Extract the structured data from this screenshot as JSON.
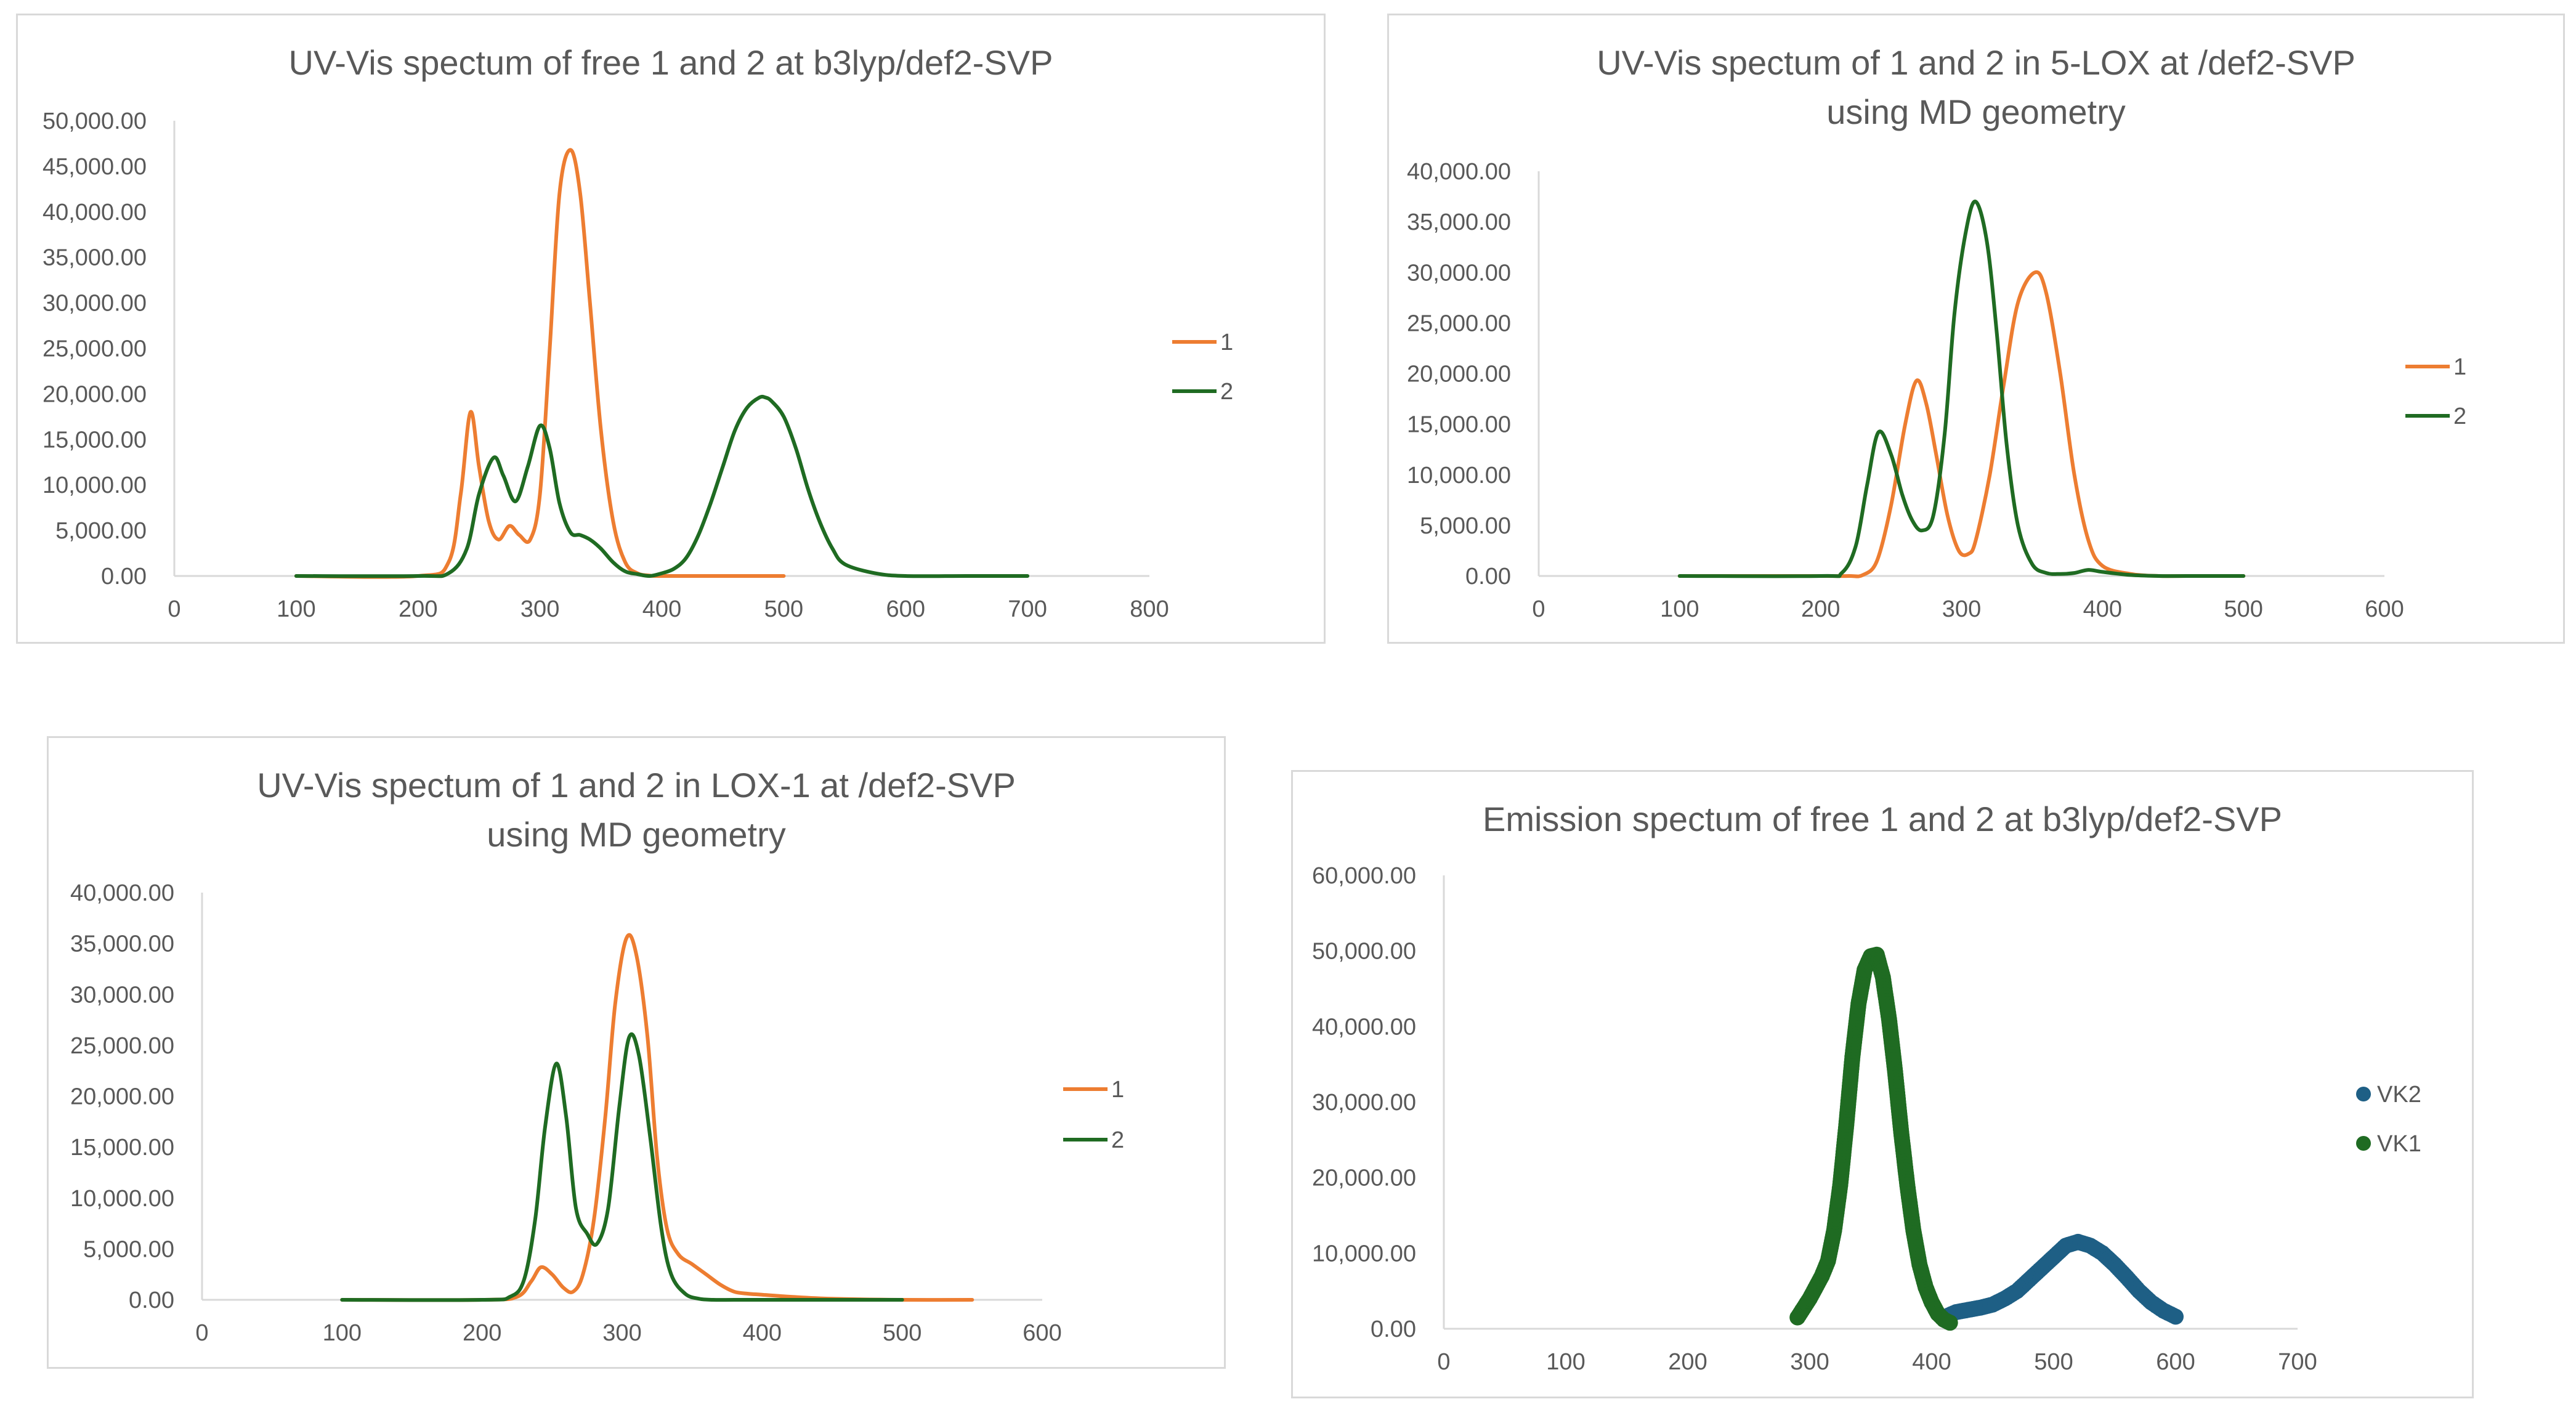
{
  "colors": {
    "series1": "#ED7D31",
    "series2": "#1F6B22",
    "vk2": "#1E5F85",
    "vk1": "#1F6B22",
    "axis": "#d9d9d9",
    "text": "#595959"
  },
  "chart_data": [
    {
      "type": "line",
      "title": "UV-Vis spectum of free 1 and 2 at b3lyp/def2-SVP",
      "title_lines": [
        "UV-Vis spectum of free 1 and 2 at b3lyp/def2-SVP"
      ],
      "xlabel": "",
      "ylabel": "",
      "xlim": [
        0,
        800
      ],
      "ylim": [
        0,
        50000
      ],
      "x_ticks": [
        "0",
        "100",
        "200",
        "300",
        "400",
        "500",
        "600",
        "700",
        "800"
      ],
      "y_ticks": [
        "0.00",
        "5,000.00",
        "10,000.00",
        "15,000.00",
        "20,000.00",
        "25,000.00",
        "30,000.00",
        "35,000.00",
        "40,000.00",
        "45,000.00",
        "50,000.00"
      ],
      "legend": "right",
      "series": [
        {
          "name": "1",
          "color": "#ED7D31",
          "x": [
            100,
            200,
            225,
            235,
            243,
            250,
            258,
            266,
            275,
            283,
            292,
            300,
            308,
            316,
            325,
            333,
            341,
            350,
            360,
            370,
            380,
            390,
            400,
            500
          ],
          "y": [
            0,
            0,
            1500,
            9000,
            18000,
            12000,
            6000,
            4000,
            5500,
            4500,
            4000,
            9000,
            25000,
            42000,
            46800,
            42000,
            30000,
            16000,
            6000,
            1500,
            300,
            50,
            0,
            0
          ]
        },
        {
          "name": "2",
          "color": "#1F6B22",
          "x": [
            100,
            200,
            225,
            240,
            250,
            262,
            270,
            280,
            290,
            300,
            308,
            316,
            325,
            333,
            341,
            350,
            360,
            370,
            380,
            390,
            400,
            410,
            420,
            430,
            440,
            450,
            460,
            470,
            480,
            485,
            490,
            500,
            510,
            520,
            530,
            540,
            550,
            575,
            600,
            650,
            700
          ],
          "y": [
            0,
            0,
            300,
            3000,
            9000,
            13000,
            11000,
            8200,
            12000,
            16500,
            14000,
            8000,
            4800,
            4500,
            4000,
            3000,
            1500,
            500,
            200,
            0,
            300,
            800,
            2000,
            4500,
            8000,
            12000,
            16000,
            18500,
            19600,
            19600,
            19200,
            17500,
            14000,
            9500,
            5800,
            3000,
            1300,
            300,
            0,
            0,
            0
          ]
        }
      ]
    },
    {
      "type": "line",
      "title": "UV-Vis spectum of 1 and 2 in 5-LOX at /def2-SVP using MD geometry",
      "title_lines": [
        "UV-Vis spectum of 1 and 2 in 5-LOX at /def2-SVP",
        "using MD geometry"
      ],
      "xlabel": "",
      "ylabel": "",
      "xlim": [
        0,
        600
      ],
      "ylim": [
        0,
        40000
      ],
      "x_ticks": [
        "0",
        "100",
        "200",
        "300",
        "400",
        "500",
        "600"
      ],
      "y_ticks": [
        "0.00",
        "5,000.00",
        "10,000.00",
        "15,000.00",
        "20,000.00",
        "25,000.00",
        "30,000.00",
        "35,000.00",
        "40,000.00"
      ],
      "legend": "right",
      "series": [
        {
          "name": "1",
          "color": "#ED7D31",
          "x": [
            100,
            200,
            220,
            230,
            240,
            250,
            260,
            268,
            275,
            282,
            290,
            298,
            305,
            310,
            320,
            330,
            340,
            352,
            360,
            370,
            380,
            390,
            400,
            420,
            440,
            460,
            500
          ],
          "y": [
            0,
            0,
            0,
            100,
            1500,
            7000,
            15000,
            19300,
            17000,
            12000,
            6000,
            2500,
            2200,
            3500,
            10000,
            19000,
            27000,
            30000,
            28000,
            20000,
            10000,
            3500,
            1000,
            200,
            0,
            0,
            0
          ]
        },
        {
          "name": "2",
          "color": "#1F6B22",
          "x": [
            100,
            200,
            215,
            225,
            233,
            241,
            250,
            258,
            265,
            272,
            280,
            288,
            295,
            303,
            310,
            318,
            325,
            332,
            340,
            350,
            360,
            370,
            380,
            390,
            400,
            420,
            440,
            460,
            500
          ],
          "y": [
            0,
            0,
            300,
            3000,
            9000,
            14200,
            12000,
            8000,
            5500,
            4500,
            6000,
            14000,
            26000,
            34000,
            37000,
            33000,
            24000,
            13000,
            5000,
            1200,
            300,
            200,
            300,
            600,
            400,
            100,
            0,
            0,
            0
          ]
        }
      ]
    },
    {
      "type": "line",
      "title": "UV-Vis spectum of 1 and 2 in LOX-1 at /def2-SVP using MD geometry",
      "title_lines": [
        "UV-Vis spectum of 1 and 2 in LOX-1 at /def2-SVP",
        "using MD geometry"
      ],
      "xlabel": "",
      "ylabel": "",
      "xlim": [
        0,
        600
      ],
      "ylim": [
        0,
        40000
      ],
      "x_ticks": [
        "0",
        "100",
        "200",
        "300",
        "400",
        "500",
        "600"
      ],
      "y_ticks": [
        "0.00",
        "5,000.00",
        "10,000.00",
        "15,000.00",
        "20,000.00",
        "25,000.00",
        "30,000.00",
        "35,000.00",
        "40,000.00"
      ],
      "legend": "right",
      "series": [
        {
          "name": "1",
          "color": "#ED7D31",
          "x": [
            100,
            200,
            225,
            235,
            242,
            250,
            258,
            265,
            272,
            280,
            288,
            295,
            303,
            310,
            318,
            325,
            332,
            340,
            350,
            360,
            370,
            380,
            390,
            400,
            420,
            450,
            500,
            550
          ],
          "y": [
            0,
            0,
            300,
            1800,
            3200,
            2500,
            1200,
            800,
            2500,
            8000,
            18000,
            29000,
            35500,
            34000,
            26000,
            14000,
            7000,
            4500,
            3500,
            2500,
            1500,
            800,
            600,
            500,
            300,
            100,
            0,
            0
          ]
        },
        {
          "name": "2",
          "color": "#1F6B22",
          "x": [
            100,
            200,
            220,
            230,
            238,
            245,
            253,
            260,
            267,
            275,
            282,
            290,
            298,
            305,
            312,
            320,
            328,
            335,
            345,
            355,
            365,
            380,
            400,
            420,
            450,
            500
          ],
          "y": [
            0,
            0,
            300,
            2000,
            8000,
            17000,
            23200,
            18000,
            9000,
            6500,
            5500,
            9000,
            19000,
            25800,
            24000,
            16000,
            7000,
            2500,
            600,
            100,
            0,
            0,
            0,
            0,
            0,
            0
          ]
        }
      ]
    },
    {
      "type": "scatter",
      "title": "Emission spectum of free 1 and 2 at b3lyp/def2-SVP",
      "title_lines": [
        "Emission spectum of free 1 and 2 at b3lyp/def2-SVP"
      ],
      "xlabel": "",
      "ylabel": "",
      "xlim": [
        0,
        700
      ],
      "ylim": [
        0,
        60000
      ],
      "x_ticks": [
        "0",
        "100",
        "200",
        "300",
        "400",
        "500",
        "600",
        "700"
      ],
      "y_ticks": [
        "0.00",
        "10,000.00",
        "20,000.00",
        "30,000.00",
        "40,000.00",
        "50,000.00",
        "60,000.00"
      ],
      "legend": "right",
      "series": [
        {
          "name": "VK2",
          "color": "#1E5F85",
          "x": [
            410,
            420,
            430,
            440,
            450,
            460,
            470,
            480,
            490,
            500,
            510,
            520,
            530,
            540,
            550,
            560,
            570,
            580,
            590,
            600
          ],
          "y": [
            1500,
            2200,
            2500,
            2800,
            3200,
            4000,
            5000,
            6500,
            8000,
            9500,
            11000,
            11500,
            11000,
            10000,
            8500,
            6800,
            5000,
            3500,
            2400,
            1600
          ]
        },
        {
          "name": "VK1",
          "color": "#1F6B22",
          "x": [
            290,
            300,
            310,
            315,
            320,
            325,
            330,
            335,
            340,
            345,
            350,
            355,
            360,
            365,
            370,
            375,
            380,
            385,
            390,
            395,
            400,
            405,
            410,
            415
          ],
          "y": [
            1500,
            4000,
            7000,
            9000,
            13000,
            19000,
            27000,
            36000,
            43000,
            47500,
            49300,
            49500,
            46500,
            41000,
            34000,
            26000,
            19000,
            13000,
            8500,
            5500,
            3500,
            2000,
            1200,
            800
          ]
        }
      ]
    }
  ]
}
